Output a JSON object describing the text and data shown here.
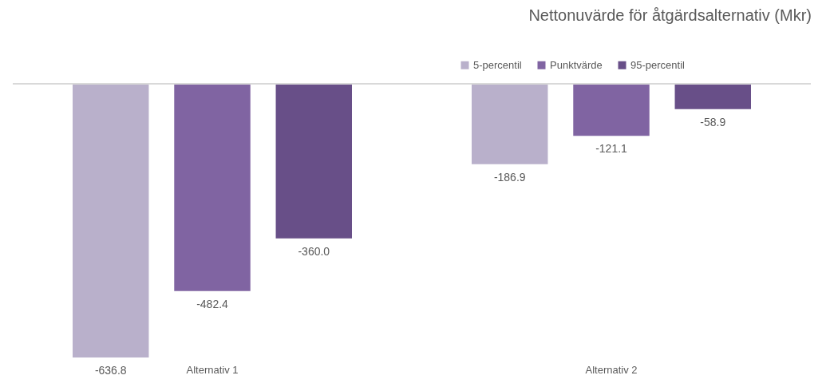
{
  "chart_data": {
    "type": "bar",
    "title": "Nettonuvärde för åtgärdsalternativ (Mkr)",
    "categories": [
      "Alternativ 1",
      "Alternativ 2"
    ],
    "series": [
      {
        "name": "5-percentil",
        "color": "#b9b0cb",
        "values": [
          -636.8,
          -186.9
        ],
        "value_labels": [
          "-636.8",
          "-186.9"
        ]
      },
      {
        "name": "Punktvärde",
        "color": "#8064a2",
        "values": [
          -482.4,
          -121.1
        ],
        "value_labels": [
          "-482.4",
          "-121.1"
        ]
      },
      {
        "name": "95-percentil",
        "color": "#684f88",
        "values": [
          -360.0,
          -58.9
        ],
        "value_labels": [
          "-360.0",
          "-58.9"
        ]
      }
    ],
    "legend": "top right",
    "tick_labels": "x"
  }
}
